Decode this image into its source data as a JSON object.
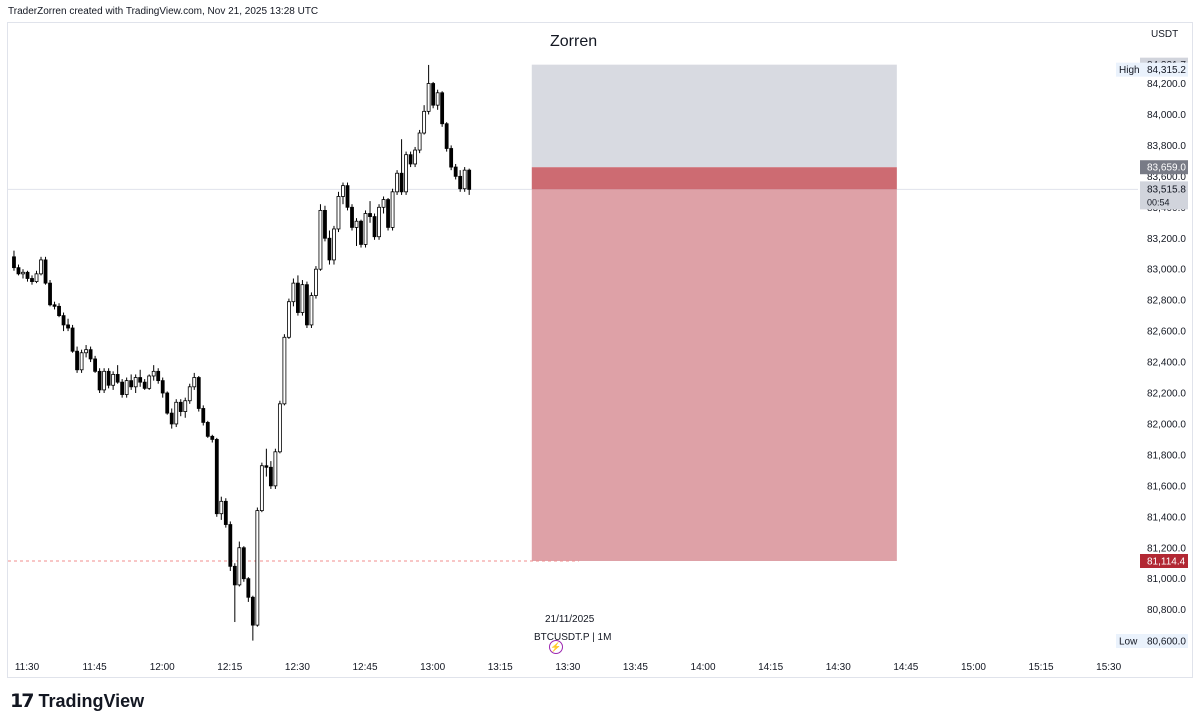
{
  "header": {
    "credit": "TraderZorren created with TradingView.com, Nov 21, 2025 13:28 UTC"
  },
  "title": "Zorren",
  "currency": "USDT",
  "symbol_line": "BTCUSDT.P | 1M",
  "date_label": "21/11/2025",
  "brand": "TradingView",
  "colors": {
    "up": "#ffffff",
    "down": "#000000",
    "stop_zone": "#d1d4dc",
    "entry_zone": "#c0464f",
    "loss_zone": "#dc9ca2",
    "price_badge": "#787b86",
    "low_badge": "#b22833"
  },
  "chart_data": {
    "type": "candlestick",
    "title": "Zorren",
    "ylabel": "USDT",
    "ylim": [
      80500,
      84450
    ],
    "y_ticks": [
      "84,200.0",
      "84,000.0",
      "83,800.0",
      "83,600.0",
      "83,400.0",
      "83,200.0",
      "83,000.0",
      "82,800.0",
      "82,600.0",
      "82,400.0",
      "82,200.0",
      "82,000.0",
      "81,800.0",
      "81,600.0",
      "81,400.0",
      "81,200.0",
      "81,000.0",
      "80,800.0"
    ],
    "y_tick_values": [
      84200,
      84000,
      83800,
      83600,
      83400,
      83200,
      83000,
      82800,
      82600,
      82400,
      82200,
      82000,
      81800,
      81600,
      81400,
      81200,
      81000,
      80800
    ],
    "x_ticks": [
      "11:30",
      "11:45",
      "12:00",
      "12:15",
      "12:30",
      "12:45",
      "13:00",
      "13:15",
      "13:30",
      "13:45",
      "14:00",
      "14:15",
      "14:30",
      "14:45",
      "15:00",
      "15:15",
      "15:30"
    ],
    "x_tick_minutes": [
      690,
      705,
      720,
      735,
      750,
      765,
      780,
      795,
      810,
      825,
      840,
      855,
      870,
      885,
      900,
      915,
      930
    ],
    "badges": {
      "top": {
        "value": 84321.7,
        "text": "84,321.7"
      },
      "high": {
        "label": "High",
        "value": 84315.2,
        "text": "84,315.2"
      },
      "entry": {
        "value": 83659.0,
        "text": "83,659.0"
      },
      "last": {
        "value": 83515.8,
        "text": "83,515.8",
        "countdown": "00:54"
      },
      "target": {
        "value": 81114.4,
        "text": "81,114.4"
      },
      "low": {
        "label": "Low",
        "value": 80600.0,
        "text": "80,600.0"
      }
    },
    "position": {
      "type": "short",
      "start": "13:22",
      "end": "14:43",
      "stop": 84321.7,
      "entry": 83659.0,
      "target": 81114.4
    },
    "candles_start": "11:27",
    "candles": [
      [
        83080,
        83120,
        82990,
        83010
      ],
      [
        83010,
        83030,
        82960,
        82970
      ],
      [
        82970,
        83000,
        82940,
        82980
      ],
      [
        82980,
        82990,
        82920,
        82940
      ],
      [
        82940,
        82960,
        82900,
        82920
      ],
      [
        82920,
        82990,
        82910,
        82970
      ],
      [
        82970,
        83080,
        82960,
        83060
      ],
      [
        83060,
        83080,
        82900,
        82910
      ],
      [
        82910,
        82930,
        82760,
        82770
      ],
      [
        82770,
        82790,
        82740,
        82760
      ],
      [
        82760,
        82780,
        82690,
        82700
      ],
      [
        82700,
        82720,
        82600,
        82640
      ],
      [
        82640,
        82680,
        82600,
        82620
      ],
      [
        82620,
        82640,
        82460,
        82470
      ],
      [
        82470,
        82500,
        82330,
        82350
      ],
      [
        82350,
        82480,
        82330,
        82460
      ],
      [
        82460,
        82510,
        82430,
        82480
      ],
      [
        82480,
        82500,
        82400,
        82420
      ],
      [
        82420,
        82440,
        82330,
        82340
      ],
      [
        82340,
        82360,
        82200,
        82220
      ],
      [
        82220,
        82360,
        82200,
        82340
      ],
      [
        82340,
        82360,
        82230,
        82250
      ],
      [
        82250,
        82340,
        82220,
        82320
      ],
      [
        82320,
        82380,
        82260,
        82270
      ],
      [
        82270,
        82290,
        82170,
        82190
      ],
      [
        82190,
        82300,
        82170,
        82280
      ],
      [
        82280,
        82320,
        82220,
        82240
      ],
      [
        82240,
        82320,
        82200,
        82300
      ],
      [
        82300,
        82350,
        82240,
        82270
      ],
      [
        82270,
        82290,
        82220,
        82230
      ],
      [
        82230,
        82320,
        82220,
        82310
      ],
      [
        82310,
        82380,
        82280,
        82340
      ],
      [
        82340,
        82360,
        82260,
        82280
      ],
      [
        82280,
        82300,
        82170,
        82200
      ],
      [
        82200,
        82210,
        82060,
        82070
      ],
      [
        82070,
        82100,
        81970,
        82000
      ],
      [
        82000,
        82160,
        81980,
        82140
      ],
      [
        82140,
        82160,
        82050,
        82080
      ],
      [
        82080,
        82170,
        82040,
        82150
      ],
      [
        82150,
        82260,
        82130,
        82240
      ],
      [
        82240,
        82330,
        82220,
        82300
      ],
      [
        82300,
        82310,
        82080,
        82100
      ],
      [
        82100,
        82120,
        81990,
        82010
      ],
      [
        82010,
        82020,
        81910,
        81920
      ],
      [
        81920,
        81930,
        81880,
        81900
      ],
      [
        81900,
        81910,
        81400,
        81420
      ],
      [
        81420,
        81530,
        81380,
        81500
      ],
      [
        81500,
        81520,
        81330,
        81350
      ],
      [
        81350,
        81370,
        81050,
        81080
      ],
      [
        81080,
        81100,
        80720,
        80960
      ],
      [
        80960,
        81240,
        80950,
        81200
      ],
      [
        81200,
        81210,
        80980,
        81000
      ],
      [
        81000,
        81010,
        80850,
        80880
      ],
      [
        80880,
        80890,
        80600,
        80700
      ],
      [
        80700,
        81460,
        80690,
        81440
      ],
      [
        81440,
        81750,
        81430,
        81730
      ],
      [
        81730,
        81840,
        81660,
        81720
      ],
      [
        81720,
        81760,
        81580,
        81600
      ],
      [
        81600,
        81840,
        81580,
        81820
      ],
      [
        81820,
        82150,
        81810,
        82130
      ],
      [
        82130,
        82580,
        82120,
        82560
      ],
      [
        82560,
        82810,
        82550,
        82790
      ],
      [
        82790,
        82940,
        82760,
        82910
      ],
      [
        82910,
        82960,
        82700,
        82720
      ],
      [
        82720,
        82930,
        82700,
        82900
      ],
      [
        82900,
        82920,
        82620,
        82640
      ],
      [
        82640,
        82850,
        82620,
        82830
      ],
      [
        82830,
        83020,
        82810,
        83000
      ],
      [
        83000,
        83420,
        82990,
        83380
      ],
      [
        83380,
        83410,
        83180,
        83200
      ],
      [
        83200,
        83250,
        83030,
        83060
      ],
      [
        83060,
        83280,
        83030,
        83260
      ],
      [
        83260,
        83500,
        83240,
        83470
      ],
      [
        83470,
        83560,
        83420,
        83540
      ],
      [
        83540,
        83560,
        83380,
        83400
      ],
      [
        83400,
        83420,
        83250,
        83270
      ],
      [
        83270,
        83330,
        83150,
        83310
      ],
      [
        83310,
        83320,
        83140,
        83160
      ],
      [
        83160,
        83380,
        83140,
        83360
      ],
      [
        83360,
        83440,
        83300,
        83340
      ],
      [
        83340,
        83360,
        83190,
        83210
      ],
      [
        83210,
        83420,
        83190,
        83400
      ],
      [
        83400,
        83470,
        83360,
        83450
      ],
      [
        83450,
        83460,
        83250,
        83270
      ],
      [
        83270,
        83520,
        83250,
        83500
      ],
      [
        83500,
        83640,
        83480,
        83620
      ],
      [
        83620,
        83840,
        83480,
        83500
      ],
      [
        83500,
        83760,
        83480,
        83740
      ],
      [
        83740,
        83760,
        83660,
        83680
      ],
      [
        83680,
        83790,
        83660,
        83770
      ],
      [
        83770,
        83900,
        83750,
        83880
      ],
      [
        83880,
        84060,
        83870,
        84020
      ],
      [
        84020,
        84320,
        84000,
        84200
      ],
      [
        84200,
        84210,
        84040,
        84060
      ],
      [
        84060,
        84160,
        84030,
        84140
      ],
      [
        84140,
        84150,
        83920,
        83940
      ],
      [
        83940,
        83950,
        83760,
        83780
      ],
      [
        83780,
        83800,
        83640,
        83660
      ],
      [
        83660,
        83680,
        83580,
        83600
      ],
      [
        83600,
        83640,
        83500,
        83520
      ],
      [
        83520,
        83660,
        83500,
        83640
      ],
      [
        83640,
        83650,
        83480,
        83515.8
      ]
    ]
  }
}
